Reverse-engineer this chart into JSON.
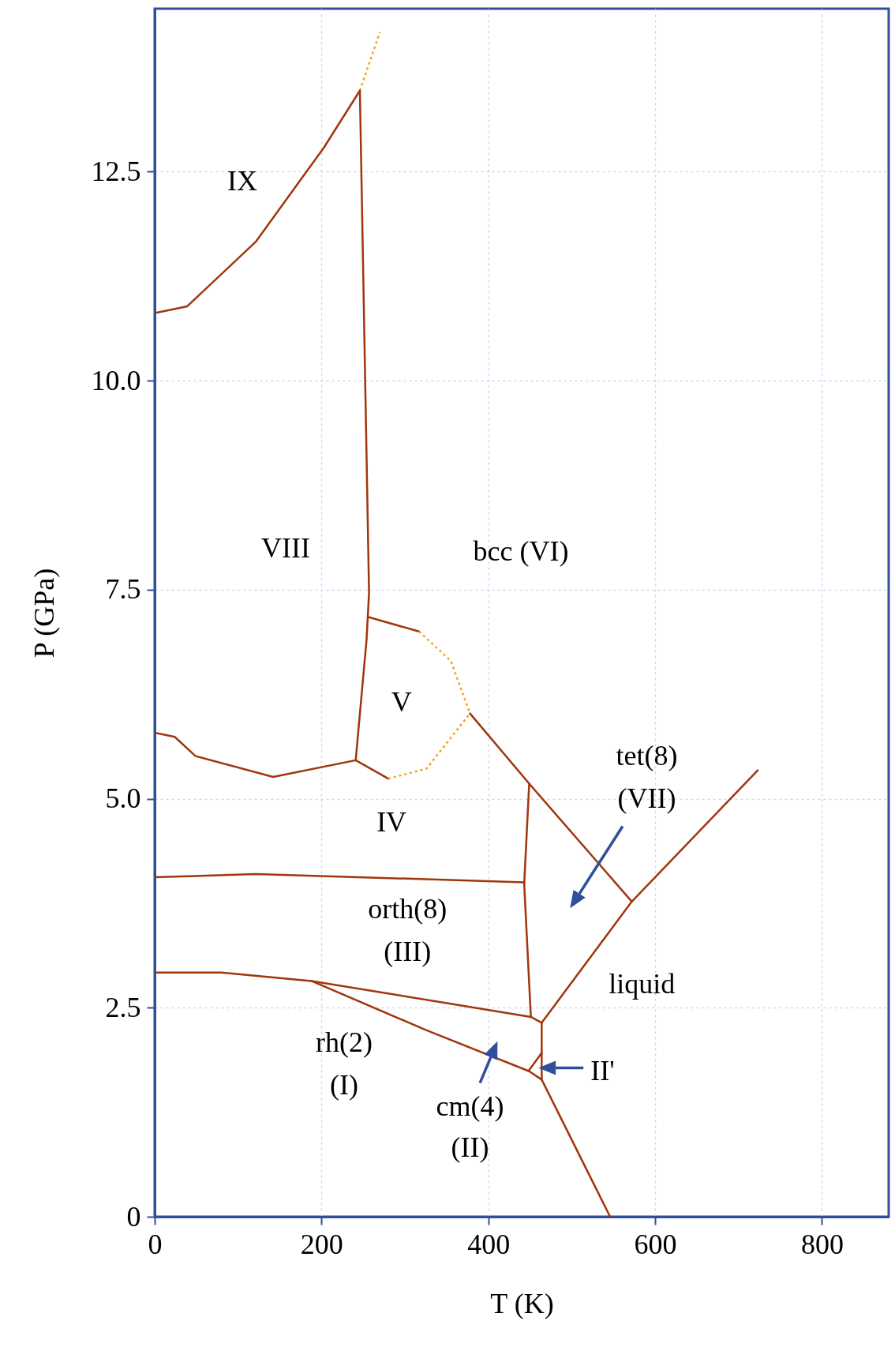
{
  "chart_data": {
    "type": "line",
    "xlabel": "T (K)",
    "ylabel": "P (GPa)",
    "xlim": [
      0,
      880
    ],
    "ylim": [
      0,
      14.45
    ],
    "xticks": [
      0,
      200,
      400,
      600,
      800
    ],
    "yticks": [
      0,
      2.5,
      {
        "value": 5,
        "label": "5.0"
      },
      {
        "value": 7.5,
        "label": "7.5"
      },
      {
        "value": 10,
        "label": "10.0"
      },
      {
        "value": 12.5,
        "label": "12.5"
      }
    ],
    "grid": true,
    "marker": "none",
    "series": [
      {
        "color": "#a0360c",
        "line_style": "solid",
        "x": [
          0,
          39,
          121,
          203,
          246
        ],
        "values": [
          10.81,
          10.89,
          11.66,
          12.79,
          13.47
        ]
      },
      {
        "color": "#f5a01a",
        "line_style": "dotted",
        "x": [
          246,
          270
        ],
        "values": [
          13.47,
          14.17
        ]
      },
      {
        "color": "#a0360c",
        "line_style": "solid",
        "x": [
          246,
          257,
          254,
          241
        ],
        "values": [
          13.47,
          7.46,
          6.9,
          5.46
        ]
      },
      {
        "color": "#a0360c",
        "line_style": "solid",
        "x": [
          257,
          317
        ],
        "values": [
          7.17,
          7.0
        ]
      },
      {
        "color": "#f5a01a",
        "line_style": "dotted",
        "x": [
          317,
          355,
          378
        ],
        "values": [
          7.0,
          6.65,
          6.02
        ]
      },
      {
        "color": "#a0360c",
        "line_style": "solid",
        "x": [
          0,
          24,
          49,
          142,
          241
        ],
        "values": [
          5.79,
          5.74,
          5.51,
          5.26,
          5.46
        ]
      },
      {
        "color": "#a0360c",
        "line_style": "solid",
        "x": [
          241,
          280
        ],
        "values": [
          5.46,
          5.24
        ]
      },
      {
        "color": "#f5a01a",
        "line_style": "dotted",
        "x": [
          280,
          326,
          378
        ],
        "values": [
          5.24,
          5.36,
          6.02
        ]
      },
      {
        "color": "#a0360c",
        "line_style": "solid",
        "x": [
          378,
          449,
          572
        ],
        "values": [
          6.02,
          5.18,
          3.77
        ]
      },
      {
        "color": "#a0360c",
        "line_style": "solid",
        "x": [
          464,
          572,
          723
        ],
        "values": [
          2.32,
          3.77,
          5.34
        ]
      },
      {
        "color": "#a0360c",
        "line_style": "solid",
        "x": [
          449,
          443,
          451
        ],
        "values": [
          5.18,
          3.98,
          2.39
        ]
      },
      {
        "color": "#a0360c",
        "line_style": "solid",
        "x": [
          0,
          121,
          443
        ],
        "values": [
          4.06,
          4.1,
          4.0
        ]
      },
      {
        "color": "#a0360c",
        "line_style": "solid",
        "x": [
          0,
          80,
          188,
          451,
          464
        ],
        "values": [
          2.92,
          2.92,
          2.82,
          2.39,
          2.32
        ]
      },
      {
        "color": "#a0360c",
        "line_style": "solid",
        "x": [
          188,
          326,
          449,
          464
        ],
        "values": [
          2.82,
          2.23,
          1.74,
          1.64
        ]
      },
      {
        "color": "#a0360c",
        "line_style": "solid",
        "x": [
          448,
          464
        ],
        "values": [
          1.74,
          1.96
        ]
      },
      {
        "color": "#a0360c",
        "line_style": "solid",
        "x": [
          464,
          464
        ],
        "values": [
          2.32,
          1.64
        ]
      },
      {
        "color": "#a0360c",
        "line_style": "solid",
        "x": [
          464,
          546
        ],
        "values": [
          1.64,
          0
        ]
      }
    ],
    "annotations": [
      "IX",
      "VIII",
      "bcc (VI)",
      "V",
      "IV",
      "tet(8)",
      "(VII)",
      "orth(8)",
      "(III)",
      "liquid",
      "rh(2)",
      "(I)",
      "cm(4)",
      "(II)",
      "II'"
    ]
  }
}
